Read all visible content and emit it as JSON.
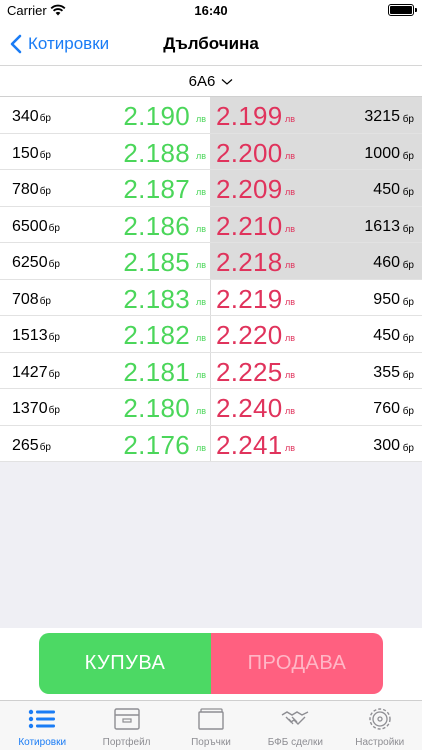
{
  "status": {
    "carrier": "Carrier",
    "time": "16:40"
  },
  "nav": {
    "back_label": "Котировки",
    "title": "Дълбочина"
  },
  "selector": {
    "symbol": "6A6"
  },
  "units": {
    "qty": "бр",
    "price": "лв"
  },
  "rows": [
    {
      "bid_qty": "340",
      "bid_price": "2.190",
      "ask_price": "2.199",
      "ask_qty": "3215",
      "highlight": true
    },
    {
      "bid_qty": "150",
      "bid_price": "2.188",
      "ask_price": "2.200",
      "ask_qty": "1000",
      "highlight": true
    },
    {
      "bid_qty": "780",
      "bid_price": "2.187",
      "ask_price": "2.209",
      "ask_qty": "450",
      "highlight": true
    },
    {
      "bid_qty": "6500",
      "bid_price": "2.186",
      "ask_price": "2.210",
      "ask_qty": "1613",
      "highlight": true
    },
    {
      "bid_qty": "6250",
      "bid_price": "2.185",
      "ask_price": "2.218",
      "ask_qty": "460",
      "highlight": true
    },
    {
      "bid_qty": "708",
      "bid_price": "2.183",
      "ask_price": "2.219",
      "ask_qty": "950",
      "highlight": false
    },
    {
      "bid_qty": "1513",
      "bid_price": "2.182",
      "ask_price": "2.220",
      "ask_qty": "450",
      "highlight": false
    },
    {
      "bid_qty": "1427",
      "bid_price": "2.181",
      "ask_price": "2.225",
      "ask_qty": "355",
      "highlight": false
    },
    {
      "bid_qty": "1370",
      "bid_price": "2.180",
      "ask_price": "2.240",
      "ask_qty": "760",
      "highlight": false
    },
    {
      "bid_qty": "265",
      "bid_price": "2.176",
      "ask_price": "2.241",
      "ask_qty": "300",
      "highlight": false
    }
  ],
  "actions": {
    "buy_label": "КУПУВА",
    "sell_label": "ПРОДАВА"
  },
  "tabs": [
    {
      "label": "Котировки",
      "icon": "list-icon",
      "active": true
    },
    {
      "label": "Портфейл",
      "icon": "portfolio-icon",
      "active": false
    },
    {
      "label": "Поръчки",
      "icon": "orders-icon",
      "active": false
    },
    {
      "label": "БФБ сделки",
      "icon": "handshake-icon",
      "active": false
    },
    {
      "label": "Настройки",
      "icon": "gear-icon",
      "active": false
    }
  ],
  "colors": {
    "accent": "#1a7cf5",
    "bid": "#4bd65a",
    "ask": "#e0335c",
    "buy": "#4cd964",
    "sell": "#ff6080"
  }
}
